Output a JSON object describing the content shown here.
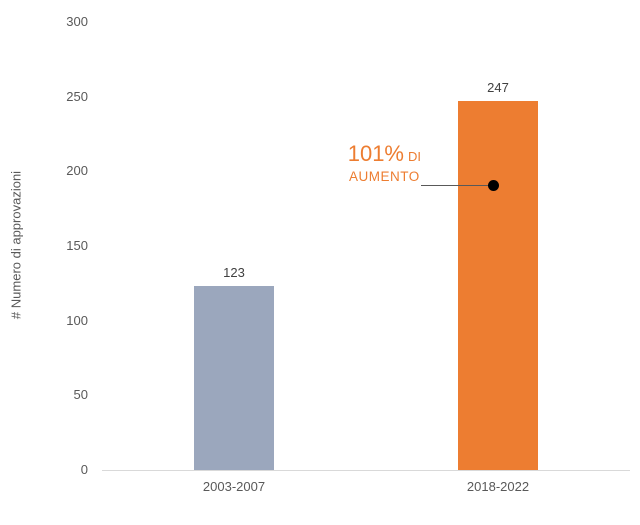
{
  "page": {
    "background": "#ffffff"
  },
  "chart_data": {
    "type": "bar",
    "title": "",
    "categories": [
      "2003-2007",
      "2018-2022"
    ],
    "values": [
      123,
      247
    ],
    "value_labels": [
      "123",
      "247"
    ],
    "bar_colors": [
      "#9BA7BD",
      "#ED7D31"
    ],
    "xlabel": "",
    "ylabel": "# Numero di approvazioni",
    "ylim": [
      0,
      300
    ],
    "yticks": [
      0,
      50,
      100,
      150,
      200,
      250,
      300
    ],
    "grid": false,
    "legend": false,
    "annotation": {
      "text_large": "101%",
      "text_small_inline": "DI",
      "text_line2": "AUMENTO",
      "color": "#ED7D31",
      "marker": "black-dot",
      "points_to_category": "2018-2022"
    },
    "colors": {
      "axis_line": "#D9D9D9",
      "tick_text": "#595959",
      "value_label_text": "#404040",
      "category_label_text": "#595959",
      "y_title_text": "#595959",
      "callout_line": "#595959",
      "callout_dot": "#000000"
    }
  }
}
